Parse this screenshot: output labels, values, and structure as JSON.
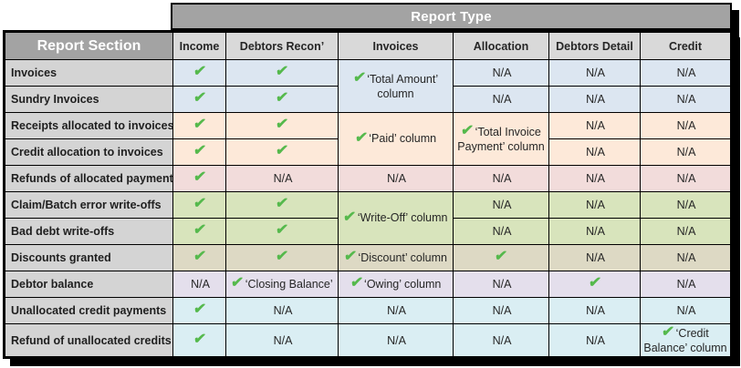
{
  "headers": {
    "report_type": "Report Type",
    "report_section": "Report Section"
  },
  "columns": [
    {
      "id": "income",
      "label": "Income"
    },
    {
      "id": "debtors-recon",
      "label": "Debtors Recon’"
    },
    {
      "id": "invoices",
      "label": "Invoices"
    },
    {
      "id": "allocation",
      "label": "Allocation"
    },
    {
      "id": "debtors-detail",
      "label": "Debtors Detail"
    },
    {
      "id": "credit",
      "label": "Credit"
    }
  ],
  "check_icon": {
    "glyph": "✔",
    "color": "#55b94c"
  },
  "palette": {
    "banner_gray": "#a3a3a3",
    "header_gray": "#d9d9d9",
    "label_gray": "#d4d4d4",
    "border_black": "#000000",
    "row_blue": "#dce6f1",
    "row_peach": "#fde9d9",
    "row_rose": "#f2dcdb",
    "row_green": "#d8e4bc",
    "row_tan": "#ddd9c4",
    "row_lavender": "#e4dfec",
    "row_cyan": "#daeef3"
  },
  "rows": [
    {
      "label": "Invoices",
      "bg": "#dce6f1",
      "cells": [
        {
          "type": "check"
        },
        {
          "type": "check"
        },
        {
          "type": "check-text",
          "text": "‘Total Amount’ column",
          "rowspan": 2
        },
        {
          "type": "text",
          "text": "N/A"
        },
        {
          "type": "text",
          "text": "N/A"
        },
        {
          "type": "text",
          "text": "N/A"
        }
      ]
    },
    {
      "label": "Sundry Invoices",
      "bg": "#dce6f1",
      "cells": [
        {
          "type": "check"
        },
        {
          "type": "check"
        },
        {
          "type": "text",
          "text": "N/A"
        },
        {
          "type": "text",
          "text": "N/A"
        },
        {
          "type": "text",
          "text": "N/A"
        }
      ]
    },
    {
      "label": "Receipts allocated to invoices",
      "bg": "#fde9d9",
      "cells": [
        {
          "type": "check"
        },
        {
          "type": "check"
        },
        {
          "type": "check-text",
          "text": "‘Paid’ column",
          "rowspan": 2
        },
        {
          "type": "check-text",
          "text": "‘Total Invoice Payment’ column",
          "rowspan": 2
        },
        {
          "type": "text",
          "text": "N/A"
        },
        {
          "type": "text",
          "text": "N/A"
        }
      ]
    },
    {
      "label": "Credit allocation to invoices",
      "bg": "#fde9d9",
      "cells": [
        {
          "type": "check"
        },
        {
          "type": "check"
        },
        {
          "type": "text",
          "text": "N/A"
        },
        {
          "type": "text",
          "text": "N/A"
        }
      ]
    },
    {
      "label": "Refunds of allocated payments",
      "bg": "#f2dcdb",
      "cells": [
        {
          "type": "check"
        },
        {
          "type": "text",
          "text": "N/A"
        },
        {
          "type": "text",
          "text": "N/A"
        },
        {
          "type": "text",
          "text": "N/A"
        },
        {
          "type": "text",
          "text": "N/A"
        },
        {
          "type": "text",
          "text": "N/A"
        }
      ]
    },
    {
      "label": "Claim/Batch error write-offs",
      "bg": "#d8e4bc",
      "cells": [
        {
          "type": "check"
        },
        {
          "type": "check"
        },
        {
          "type": "check-text",
          "text": "‘Write-Off’ column",
          "rowspan": 2
        },
        {
          "type": "text",
          "text": "N/A"
        },
        {
          "type": "text",
          "text": "N/A"
        },
        {
          "type": "text",
          "text": "N/A"
        }
      ]
    },
    {
      "label": "Bad debt write-offs",
      "bg": "#d8e4bc",
      "cells": [
        {
          "type": "check"
        },
        {
          "type": "check"
        },
        {
          "type": "text",
          "text": "N/A"
        },
        {
          "type": "text",
          "text": "N/A"
        },
        {
          "type": "text",
          "text": "N/A"
        }
      ]
    },
    {
      "label": "Discounts granted",
      "bg": "#ddd9c4",
      "cells": [
        {
          "type": "check"
        },
        {
          "type": "check"
        },
        {
          "type": "check-text",
          "text": "‘Discount’ column"
        },
        {
          "type": "check"
        },
        {
          "type": "text",
          "text": "N/A"
        },
        {
          "type": "text",
          "text": "N/A"
        }
      ]
    },
    {
      "label": "Debtor balance",
      "bg": "#e4dfec",
      "cells": [
        {
          "type": "text",
          "text": "N/A"
        },
        {
          "type": "check-text",
          "text": "‘Closing Balance’"
        },
        {
          "type": "check-text",
          "text": "‘Owing’ column"
        },
        {
          "type": "text",
          "text": "N/A"
        },
        {
          "type": "check"
        },
        {
          "type": "text",
          "text": "N/A"
        }
      ]
    },
    {
      "label": "Unallocated credit payments",
      "bg": "#daeef3",
      "cells": [
        {
          "type": "check"
        },
        {
          "type": "text",
          "text": "N/A"
        },
        {
          "type": "text",
          "text": "N/A"
        },
        {
          "type": "text",
          "text": "N/A"
        },
        {
          "type": "text",
          "text": "N/A"
        },
        {
          "type": "text",
          "text": "N/A"
        }
      ]
    },
    {
      "label": "Refund of unallocated credits",
      "bg": "#daeef3",
      "cells": [
        {
          "type": "check"
        },
        {
          "type": "text",
          "text": "N/A"
        },
        {
          "type": "text",
          "text": "N/A"
        },
        {
          "type": "text",
          "text": "N/A"
        },
        {
          "type": "text",
          "text": "N/A"
        },
        {
          "type": "check-text",
          "text": "‘Credit Balance’ column"
        }
      ]
    }
  ]
}
